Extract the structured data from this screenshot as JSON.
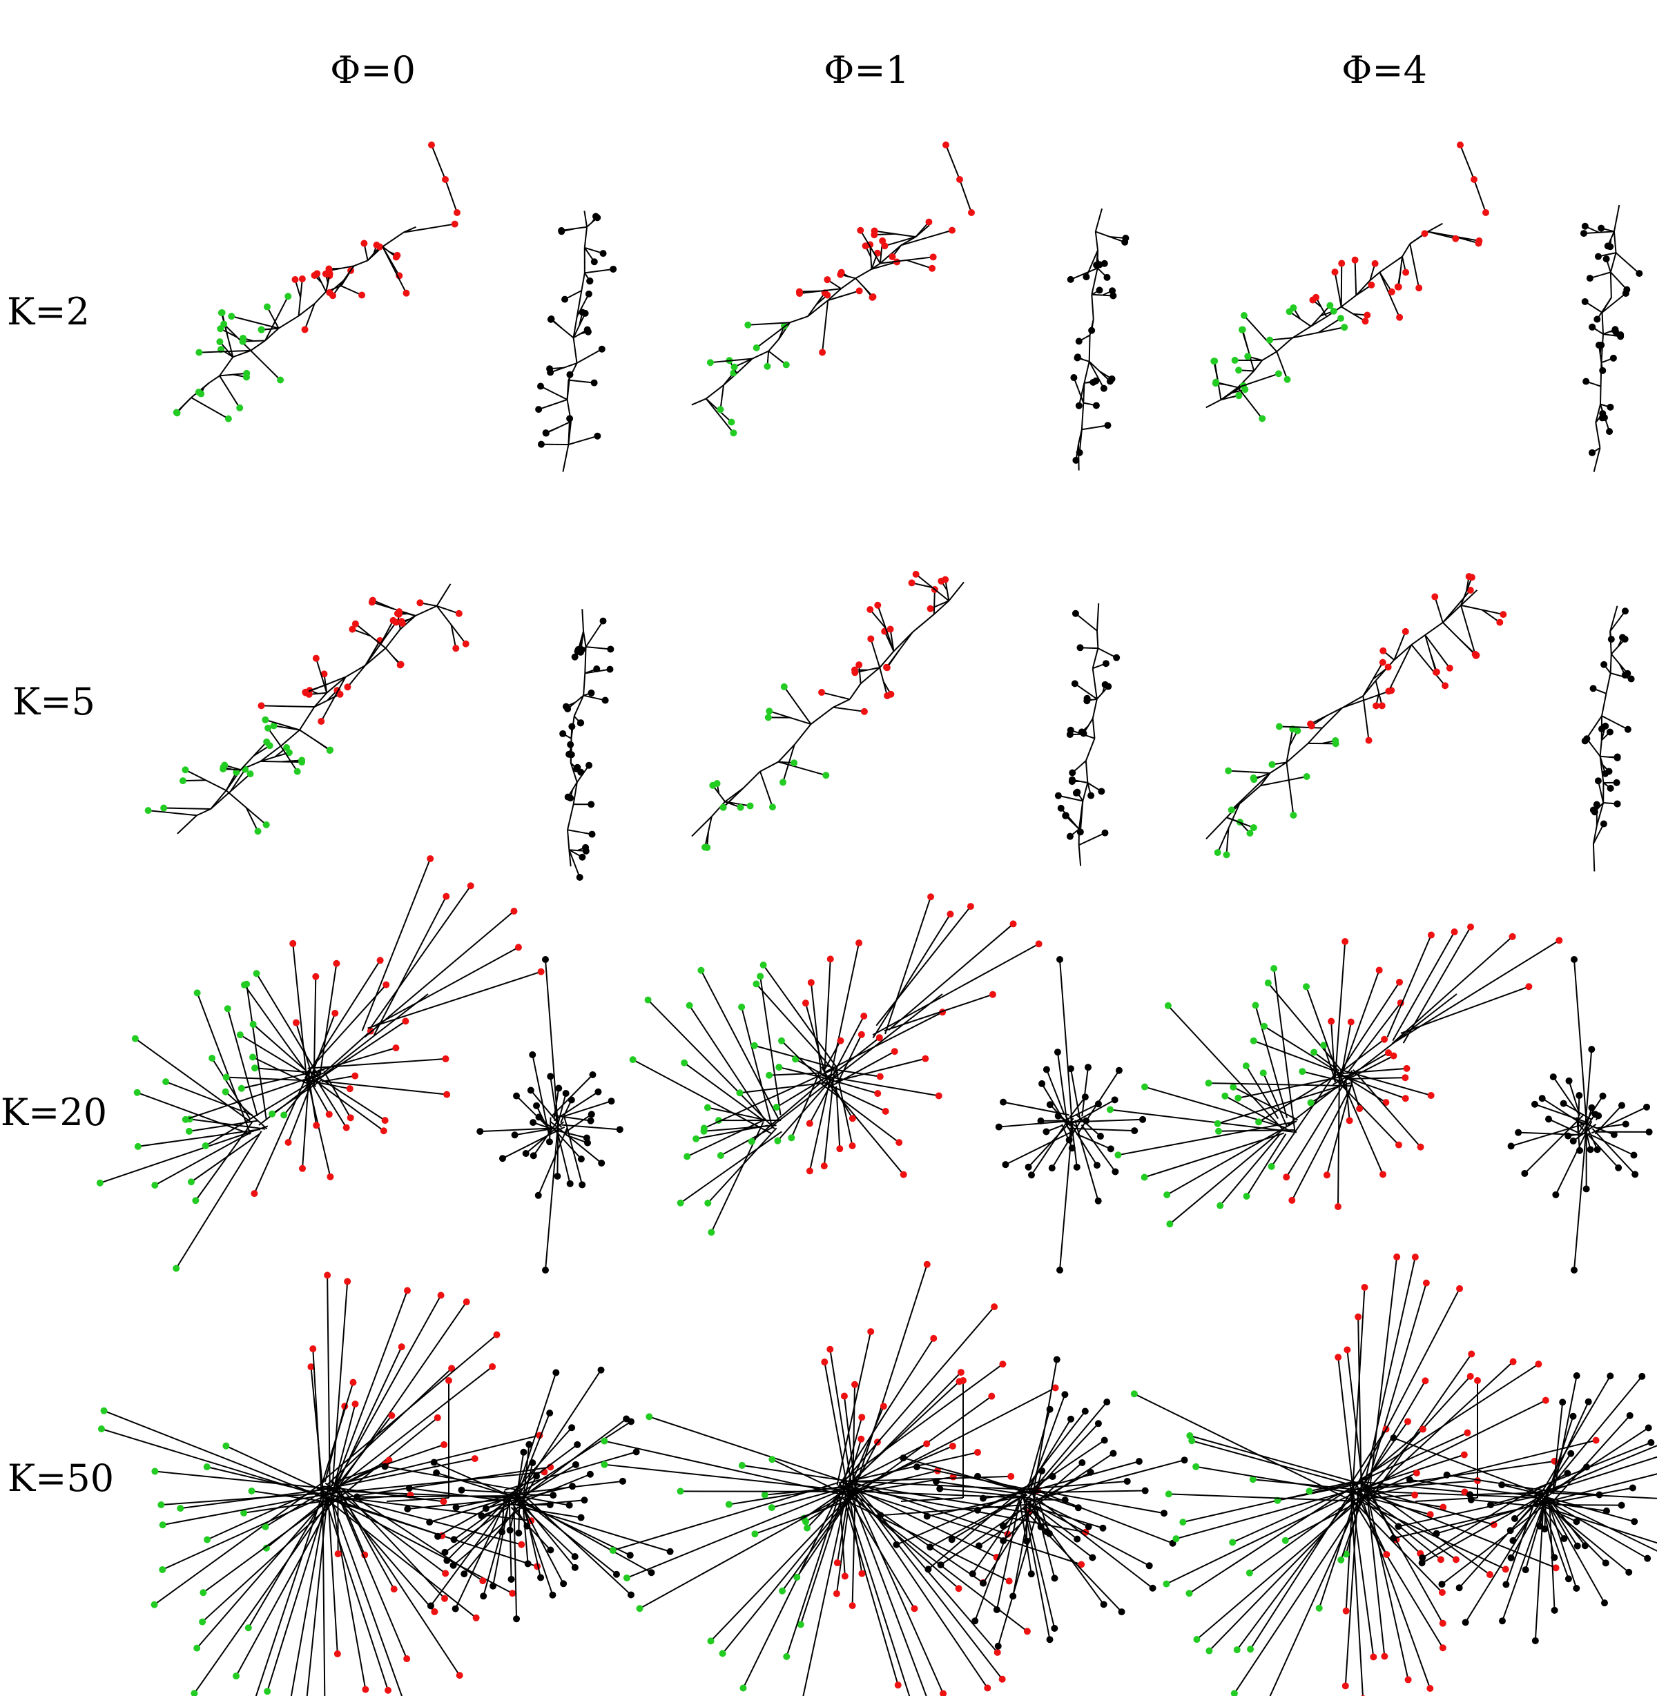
{
  "figure": {
    "column_headers": [
      "Φ=0",
      "Φ=1",
      "Φ=4"
    ],
    "row_labels": [
      "K=2",
      "K=5",
      "K=20",
      "K=50"
    ],
    "colors": {
      "group_a": "#22cc22",
      "group_b": "#ee1111",
      "group_c": "#000000",
      "edge": "#000000"
    }
  }
}
